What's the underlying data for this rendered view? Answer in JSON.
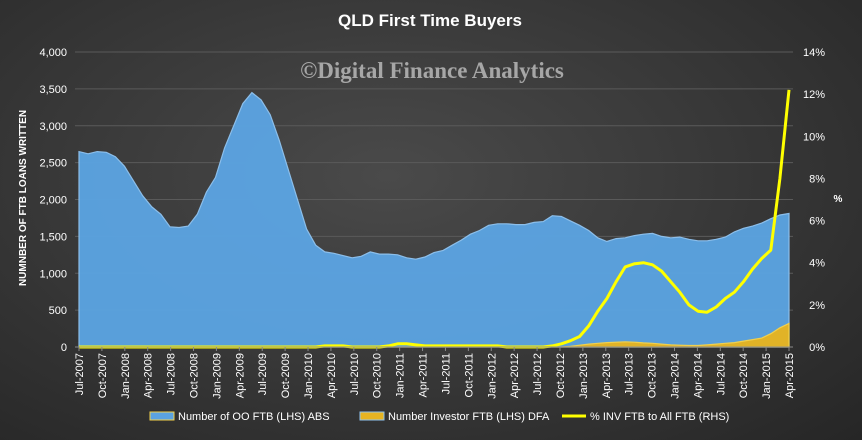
{
  "chart_data": {
    "type": "area",
    "title": "QLD First Time Buyers",
    "watermark": "©Digital Finance Analytics",
    "ylabel": "NUMNBER OF FTB LOANS WRITTEN",
    "y2label": "%",
    "ylim": [
      0,
      4000
    ],
    "y2lim": [
      0,
      14
    ],
    "yticks": [
      "0",
      "500",
      "1,000",
      "1,500",
      "2,000",
      "2,500",
      "3,000",
      "3,500",
      "4,000"
    ],
    "y2ticks": [
      "0%",
      "2%",
      "4%",
      "6%",
      "8%",
      "10%",
      "12%",
      "14%"
    ],
    "grid": true,
    "legend_position": "bottom",
    "x_labels": [
      "Jul-2007",
      "Oct-2007",
      "Jan-2008",
      "Apr-2008",
      "Jul-2008",
      "Oct-2008",
      "Jan-2009",
      "Apr-2009",
      "Jul-2009",
      "Oct-2009",
      "Jan-2010",
      "Apr-2010",
      "Jul-2010",
      "Oct-2010",
      "Jan-2011",
      "Apr-2011",
      "Jul-2011",
      "Oct-2011",
      "Jan-2012",
      "Apr-2012",
      "Jul-2012",
      "Oct-2012",
      "Jan-2013",
      "Apr-2013",
      "Jul-2013",
      "Oct-2013",
      "Jan-2014",
      "Apr-2014",
      "Jul-2014",
      "Oct-2014",
      "Jan-2015",
      "Apr-2015"
    ],
    "series": [
      {
        "name": "Number of OO FTB (LHS) ABS",
        "axis": "left",
        "style": "area",
        "color": "#5ba3e0",
        "values": [
          2650,
          2620,
          2650,
          2640,
          2580,
          2450,
          2250,
          2050,
          1900,
          1800,
          1630,
          1620,
          1640,
          1800,
          2100,
          2300,
          2700,
          3000,
          3300,
          3450,
          3350,
          3150,
          2800,
          2400,
          2000,
          1600,
          1380,
          1290,
          1270,
          1240,
          1210,
          1230,
          1290,
          1260,
          1260,
          1250,
          1210,
          1190,
          1220,
          1280,
          1310,
          1380,
          1450,
          1530,
          1580,
          1650,
          1670,
          1670,
          1660,
          1660,
          1690,
          1700,
          1780,
          1770,
          1710,
          1650,
          1580,
          1480,
          1430,
          1470,
          1480,
          1510,
          1530,
          1540,
          1500,
          1480,
          1490,
          1460,
          1440,
          1440,
          1460,
          1490,
          1560,
          1610,
          1640,
          1680,
          1740,
          1790,
          1810
        ]
      },
      {
        "name": "Number Investor FTB (LHS) DFA",
        "axis": "left",
        "style": "area",
        "color": "#e6b422",
        "values": [
          0,
          0,
          0,
          0,
          0,
          0,
          0,
          0,
          0,
          0,
          0,
          0,
          0,
          0,
          0,
          0,
          0,
          0,
          0,
          0,
          0,
          0,
          0,
          0,
          0,
          0,
          0,
          0,
          0,
          0,
          0,
          0,
          0,
          0,
          0,
          0,
          0,
          0,
          0,
          0,
          0,
          0,
          0,
          0,
          0,
          0,
          0,
          0,
          0,
          0,
          0,
          0,
          0,
          0,
          10,
          25,
          40,
          50,
          60,
          65,
          70,
          65,
          55,
          50,
          40,
          30,
          25,
          20,
          20,
          30,
          40,
          50,
          60,
          80,
          100,
          120,
          180,
          260,
          320
        ]
      },
      {
        "name": "% INV FTB to All FTB (RHS)",
        "axis": "right",
        "style": "line",
        "color": "#ffff00",
        "values": [
          0,
          0,
          0,
          0,
          0,
          0,
          0,
          0,
          0,
          0,
          0,
          0,
          0,
          0,
          0,
          0,
          0,
          0,
          0,
          0,
          0,
          0,
          0,
          0,
          0,
          0,
          0,
          0.05,
          0.05,
          0.05,
          0,
          0,
          0,
          0,
          0.05,
          0.15,
          0.15,
          0.1,
          0.05,
          0.05,
          0.05,
          0.05,
          0.05,
          0.05,
          0.05,
          0.05,
          0.05,
          0,
          0,
          0,
          0,
          0,
          0.05,
          0.15,
          0.3,
          0.5,
          1.0,
          1.7,
          2.3,
          3.1,
          3.8,
          3.95,
          4.0,
          3.9,
          3.6,
          3.1,
          2.6,
          2.0,
          1.7,
          1.65,
          1.9,
          2.3,
          2.6,
          3.1,
          3.7,
          4.2,
          4.6,
          8.0,
          12.2
        ]
      }
    ]
  }
}
